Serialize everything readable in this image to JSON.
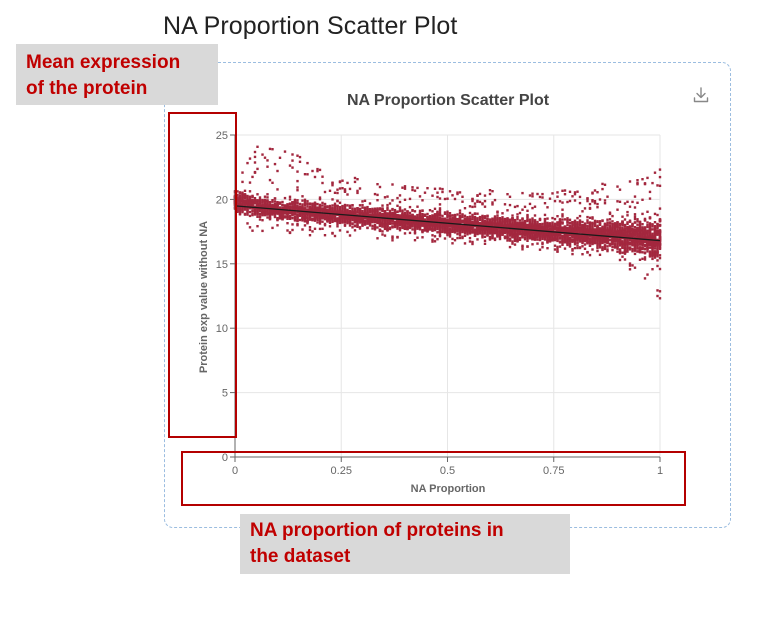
{
  "page": {
    "title": "NA Proportion Scatter Plot"
  },
  "annotations": {
    "left_callout": [
      "Mean expression",
      "of the protein"
    ],
    "bottom_callout": [
      "NA proportion of proteins in",
      "the dataset"
    ]
  },
  "toolbar": {
    "download_icon": "download-icon"
  },
  "chart_data": {
    "type": "scatter",
    "title": "NA Proportion Scatter Plot",
    "xlabel": "NA Proportion",
    "ylabel": "Protein exp value without NA",
    "xlim": [
      0,
      1
    ],
    "ylim": [
      0,
      25
    ],
    "xticks": [
      "0",
      "0.25",
      "0.5",
      "0.75",
      "1"
    ],
    "yticks": [
      "0",
      "5",
      "10",
      "15",
      "20",
      "25"
    ],
    "grid": true,
    "point_color": "#a3273e",
    "trend_color": "#1a1a1a",
    "trendline": {
      "x": [
        0,
        1
      ],
      "y": [
        19.5,
        16.8
      ]
    },
    "bands": [
      {
        "x": 0.0,
        "center": 19.8,
        "spread": 1.0,
        "outlier_top": 24.5,
        "outlier_bottom": 17.6
      },
      {
        "x": 0.1,
        "center": 19.2,
        "spread": 1.0,
        "outlier_top": 24.2,
        "outlier_bottom": 17.4
      },
      {
        "x": 0.25,
        "center": 18.8,
        "spread": 1.0,
        "outlier_top": 21.8,
        "outlier_bottom": 17.0
      },
      {
        "x": 0.5,
        "center": 18.1,
        "spread": 1.0,
        "outlier_top": 20.8,
        "outlier_bottom": 16.6
      },
      {
        "x": 0.75,
        "center": 17.5,
        "spread": 1.1,
        "outlier_top": 20.6,
        "outlier_bottom": 15.9
      },
      {
        "x": 0.9,
        "center": 17.2,
        "spread": 1.4,
        "outlier_top": 21.4,
        "outlier_bottom": 15.3
      },
      {
        "x": 0.97,
        "center": 17.0,
        "spread": 1.8,
        "outlier_top": 22.0,
        "outlier_bottom": 13.5
      },
      {
        "x": 1.0,
        "center": 16.9,
        "spread": 2.2,
        "outlier_top": 22.5,
        "outlier_bottom": 12.0
      }
    ],
    "columns": 170,
    "points_per_column": 28
  }
}
